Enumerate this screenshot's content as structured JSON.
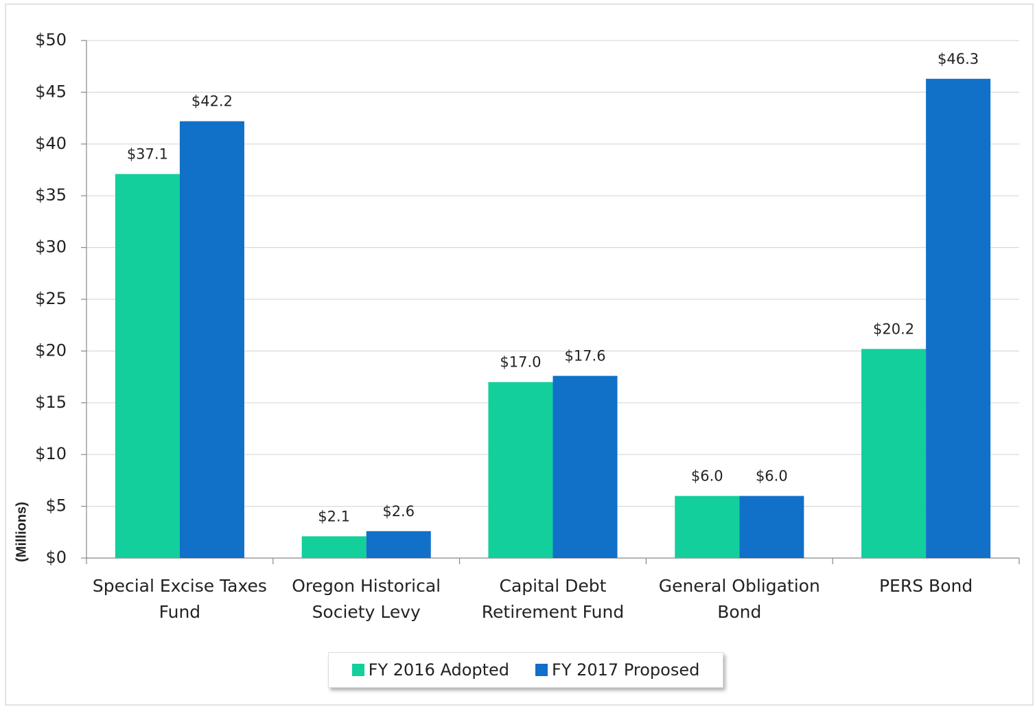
{
  "chart_data": {
    "type": "bar",
    "y_label": "(Millions)",
    "categories": [
      "Special Excise Taxes Fund",
      "Oregon Historical Society Levy",
      "Capital Debt Retirement Fund",
      "General Obligation Bond",
      "PERS Bond"
    ],
    "series": [
      {
        "name": "FY 2016 Adopted",
        "color": "#12cf9b",
        "values": [
          37.1,
          2.1,
          17.0,
          6.0,
          20.2
        ],
        "value_labels": [
          "$37.1",
          "$2.1",
          "$17.0",
          "$6.0",
          "$20.2"
        ]
      },
      {
        "name": "FY 2017 Proposed",
        "color": "#1170c8",
        "values": [
          42.2,
          2.6,
          17.6,
          6.0,
          46.3
        ],
        "value_labels": [
          "$42.2",
          "$2.6",
          "$17.6",
          "$6.0",
          "$46.3"
        ]
      }
    ],
    "ylim": [
      0,
      50
    ],
    "yticks": [
      {
        "value": 0,
        "label": "$0"
      },
      {
        "value": 5,
        "label": "$5"
      },
      {
        "value": 10,
        "label": "$10"
      },
      {
        "value": 15,
        "label": "$15"
      },
      {
        "value": 20,
        "label": "$20"
      },
      {
        "value": 25,
        "label": "$25"
      },
      {
        "value": 30,
        "label": "$30"
      },
      {
        "value": 35,
        "label": "$35"
      },
      {
        "value": 40,
        "label": "$40"
      },
      {
        "value": 45,
        "label": "$45"
      },
      {
        "value": 50,
        "label": "$50"
      }
    ],
    "grid": true,
    "legend": "bottom"
  }
}
